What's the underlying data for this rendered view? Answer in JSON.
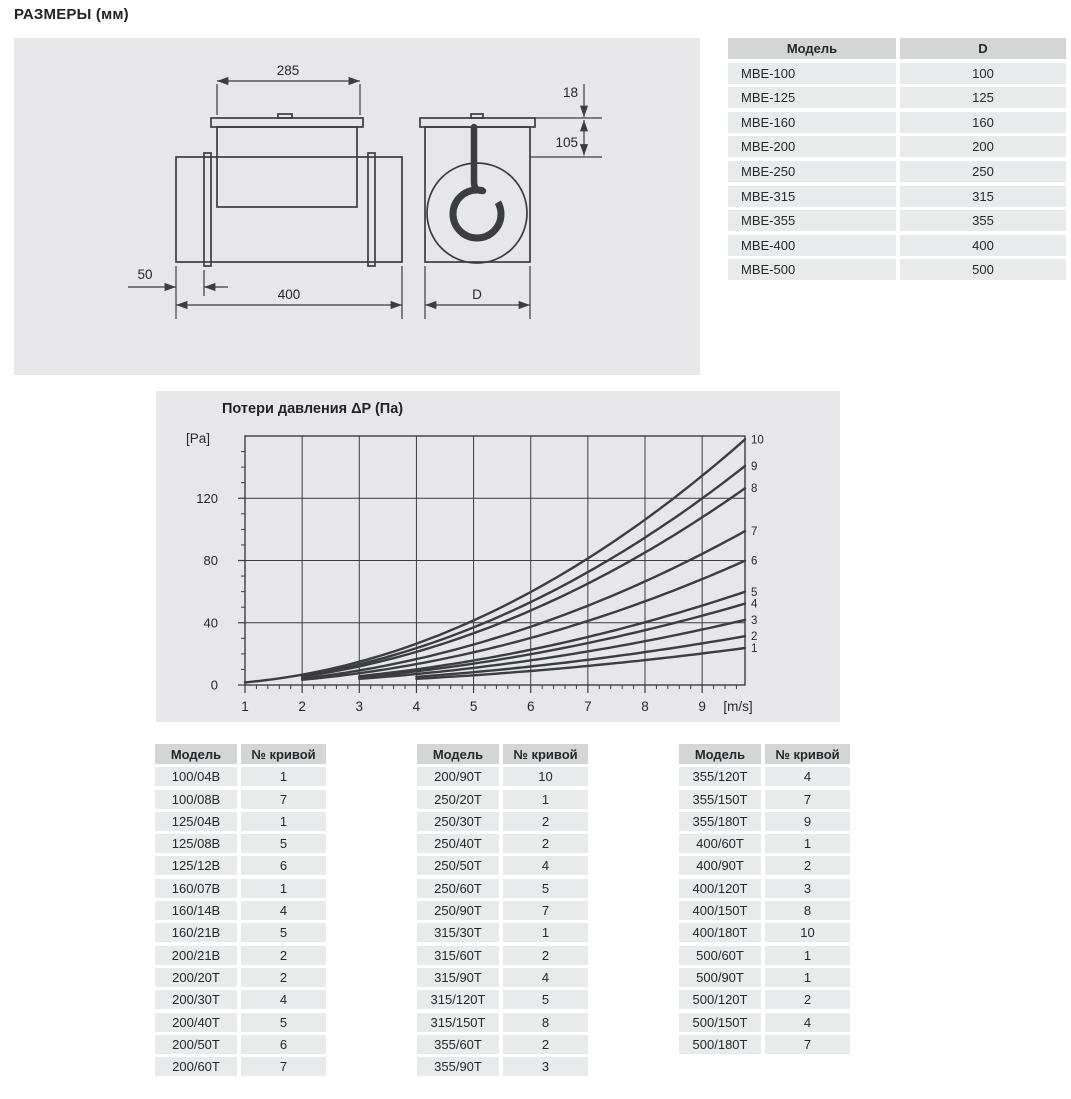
{
  "page": {
    "title": "РАЗМЕРЫ (мм)"
  },
  "drawing": {
    "dim_box_width": "285",
    "dim_lid_height": "18",
    "dim_box_height": "105",
    "dim_flange_offset": "50",
    "dim_total_length": "400",
    "dim_diameter": "D"
  },
  "spec_table": {
    "headers": [
      "Модель",
      "D"
    ],
    "rows": [
      [
        "МВЕ-100",
        "100"
      ],
      [
        "МВЕ-125",
        "125"
      ],
      [
        "МВЕ-160",
        "160"
      ],
      [
        "МВЕ-200",
        "200"
      ],
      [
        "МВЕ-250",
        "250"
      ],
      [
        "МВЕ-315",
        "315"
      ],
      [
        "МВЕ-355",
        "355"
      ],
      [
        "МВЕ-400",
        "400"
      ],
      [
        "МВЕ-500",
        "500"
      ]
    ]
  },
  "chart_data": {
    "type": "line",
    "title": "Потери давления ΔP (Па)",
    "ylabel": "[Pa]",
    "xlabel": "[m/s]",
    "xlim": [
      1,
      9.75
    ],
    "ylim": [
      0,
      160
    ],
    "x_ticks": [
      1,
      2,
      3,
      4,
      5,
      6,
      7,
      8,
      9
    ],
    "y_ticks": [
      0,
      40,
      80,
      120
    ],
    "x_minor_step": 0.2,
    "y_minor_step": 10,
    "grid": true,
    "legend_position": "curve numbers at right edge of plot",
    "model": "dP = k * v^2 (Pa), v = air velocity in m/s; each curve drawn from v_start to 9.75 m/s",
    "series": [
      {
        "name": "1",
        "k": 0.25,
        "v_start": 4,
        "dp_at_right_edge": 24
      },
      {
        "name": "2",
        "k": 0.33,
        "v_start": 4,
        "dp_at_right_edge": 31
      },
      {
        "name": "3",
        "k": 0.44,
        "v_start": 3,
        "dp_at_right_edge": 42
      },
      {
        "name": "4",
        "k": 0.55,
        "v_start": 3,
        "dp_at_right_edge": 52
      },
      {
        "name": "5",
        "k": 0.63,
        "v_start": 3,
        "dp_at_right_edge": 60
      },
      {
        "name": "6",
        "k": 0.84,
        "v_start": 2,
        "dp_at_right_edge": 80
      },
      {
        "name": "7",
        "k": 1.04,
        "v_start": 2,
        "dp_at_right_edge": 99
      },
      {
        "name": "8",
        "k": 1.33,
        "v_start": 2,
        "dp_at_right_edge": 126
      },
      {
        "name": "9",
        "k": 1.48,
        "v_start": 2,
        "dp_at_right_edge": 141
      },
      {
        "name": "10",
        "k": 1.66,
        "v_start": 1,
        "dp_at_right_edge": 158
      }
    ]
  },
  "curve_tables": {
    "headers": [
      "Модель",
      "№ кривой"
    ],
    "tables": [
      {
        "rows": [
          [
            "100/04B",
            "1"
          ],
          [
            "100/08B",
            "7"
          ],
          [
            "125/04B",
            "1"
          ],
          [
            "125/08B",
            "5"
          ],
          [
            "125/12B",
            "6"
          ],
          [
            "160/07B",
            "1"
          ],
          [
            "160/14B",
            "4"
          ],
          [
            "160/21B",
            "5"
          ],
          [
            "200/21B",
            "2"
          ],
          [
            "200/20T",
            "2"
          ],
          [
            "200/30T",
            "4"
          ],
          [
            "200/40T",
            "5"
          ],
          [
            "200/50T",
            "6"
          ],
          [
            "200/60T",
            "7"
          ]
        ]
      },
      {
        "rows": [
          [
            "200/90T",
            "10"
          ],
          [
            "250/20T",
            "1"
          ],
          [
            "250/30T",
            "2"
          ],
          [
            "250/40T",
            "2"
          ],
          [
            "250/50T",
            "4"
          ],
          [
            "250/60T",
            "5"
          ],
          [
            "250/90T",
            "7"
          ],
          [
            "315/30T",
            "1"
          ],
          [
            "315/60T",
            "2"
          ],
          [
            "315/90T",
            "4"
          ],
          [
            "315/120T",
            "5"
          ],
          [
            "315/150T",
            "8"
          ],
          [
            "355/60T",
            "2"
          ],
          [
            "355/90T",
            "3"
          ]
        ]
      },
      {
        "rows": [
          [
            "355/120T",
            "4"
          ],
          [
            "355/150T",
            "7"
          ],
          [
            "355/180T",
            "9"
          ],
          [
            "400/60T",
            "1"
          ],
          [
            "400/90T",
            "2"
          ],
          [
            "400/120T",
            "3"
          ],
          [
            "400/150T",
            "8"
          ],
          [
            "400/180T",
            "10"
          ],
          [
            "500/60T",
            "1"
          ],
          [
            "500/90T",
            "1"
          ],
          [
            "500/120T",
            "2"
          ],
          [
            "500/150T",
            "4"
          ],
          [
            "500/180T",
            "7"
          ]
        ]
      }
    ]
  },
  "colors": {
    "panel_bg": "#e7e7e9",
    "table_header_bg": "#d3d5d7",
    "table_row_bg": "#e9eaeb",
    "text": "#26282b",
    "line": "#3b3d40"
  }
}
